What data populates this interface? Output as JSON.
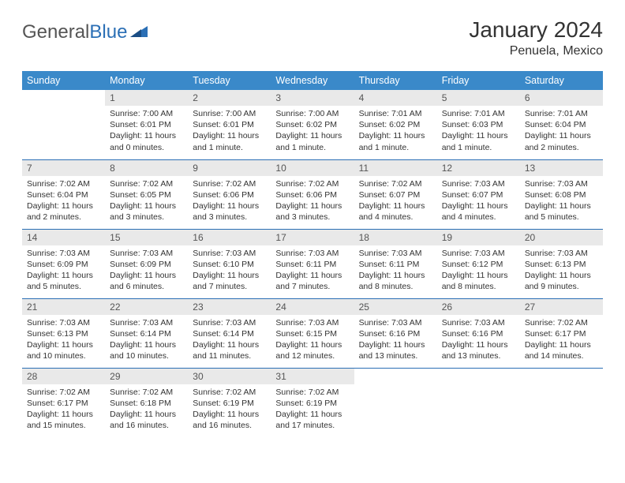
{
  "brand": {
    "part1": "General",
    "part2": "Blue"
  },
  "title": "January 2024",
  "location": "Penuela, Mexico",
  "colors": {
    "header_bg": "#3a89c9",
    "header_text": "#ffffff",
    "rule": "#2b6fb5",
    "daynum_bg": "#e9e9e9",
    "text": "#333333",
    "logo_gray": "#555555",
    "logo_blue": "#2b6fb5",
    "page_bg": "#ffffff"
  },
  "daynames": [
    "Sunday",
    "Monday",
    "Tuesday",
    "Wednesday",
    "Thursday",
    "Friday",
    "Saturday"
  ],
  "weeks": [
    [
      {
        "n": "",
        "sunrise": "",
        "sunset": "",
        "daylight": "",
        "empty": true
      },
      {
        "n": "1",
        "sunrise": "Sunrise: 7:00 AM",
        "sunset": "Sunset: 6:01 PM",
        "daylight": "Daylight: 11 hours and 0 minutes."
      },
      {
        "n": "2",
        "sunrise": "Sunrise: 7:00 AM",
        "sunset": "Sunset: 6:01 PM",
        "daylight": "Daylight: 11 hours and 1 minute."
      },
      {
        "n": "3",
        "sunrise": "Sunrise: 7:00 AM",
        "sunset": "Sunset: 6:02 PM",
        "daylight": "Daylight: 11 hours and 1 minute."
      },
      {
        "n": "4",
        "sunrise": "Sunrise: 7:01 AM",
        "sunset": "Sunset: 6:02 PM",
        "daylight": "Daylight: 11 hours and 1 minute."
      },
      {
        "n": "5",
        "sunrise": "Sunrise: 7:01 AM",
        "sunset": "Sunset: 6:03 PM",
        "daylight": "Daylight: 11 hours and 1 minute."
      },
      {
        "n": "6",
        "sunrise": "Sunrise: 7:01 AM",
        "sunset": "Sunset: 6:04 PM",
        "daylight": "Daylight: 11 hours and 2 minutes."
      }
    ],
    [
      {
        "n": "7",
        "sunrise": "Sunrise: 7:02 AM",
        "sunset": "Sunset: 6:04 PM",
        "daylight": "Daylight: 11 hours and 2 minutes."
      },
      {
        "n": "8",
        "sunrise": "Sunrise: 7:02 AM",
        "sunset": "Sunset: 6:05 PM",
        "daylight": "Daylight: 11 hours and 3 minutes."
      },
      {
        "n": "9",
        "sunrise": "Sunrise: 7:02 AM",
        "sunset": "Sunset: 6:06 PM",
        "daylight": "Daylight: 11 hours and 3 minutes."
      },
      {
        "n": "10",
        "sunrise": "Sunrise: 7:02 AM",
        "sunset": "Sunset: 6:06 PM",
        "daylight": "Daylight: 11 hours and 3 minutes."
      },
      {
        "n": "11",
        "sunrise": "Sunrise: 7:02 AM",
        "sunset": "Sunset: 6:07 PM",
        "daylight": "Daylight: 11 hours and 4 minutes."
      },
      {
        "n": "12",
        "sunrise": "Sunrise: 7:03 AM",
        "sunset": "Sunset: 6:07 PM",
        "daylight": "Daylight: 11 hours and 4 minutes."
      },
      {
        "n": "13",
        "sunrise": "Sunrise: 7:03 AM",
        "sunset": "Sunset: 6:08 PM",
        "daylight": "Daylight: 11 hours and 5 minutes."
      }
    ],
    [
      {
        "n": "14",
        "sunrise": "Sunrise: 7:03 AM",
        "sunset": "Sunset: 6:09 PM",
        "daylight": "Daylight: 11 hours and 5 minutes."
      },
      {
        "n": "15",
        "sunrise": "Sunrise: 7:03 AM",
        "sunset": "Sunset: 6:09 PM",
        "daylight": "Daylight: 11 hours and 6 minutes."
      },
      {
        "n": "16",
        "sunrise": "Sunrise: 7:03 AM",
        "sunset": "Sunset: 6:10 PM",
        "daylight": "Daylight: 11 hours and 7 minutes."
      },
      {
        "n": "17",
        "sunrise": "Sunrise: 7:03 AM",
        "sunset": "Sunset: 6:11 PM",
        "daylight": "Daylight: 11 hours and 7 minutes."
      },
      {
        "n": "18",
        "sunrise": "Sunrise: 7:03 AM",
        "sunset": "Sunset: 6:11 PM",
        "daylight": "Daylight: 11 hours and 8 minutes."
      },
      {
        "n": "19",
        "sunrise": "Sunrise: 7:03 AM",
        "sunset": "Sunset: 6:12 PM",
        "daylight": "Daylight: 11 hours and 8 minutes."
      },
      {
        "n": "20",
        "sunrise": "Sunrise: 7:03 AM",
        "sunset": "Sunset: 6:13 PM",
        "daylight": "Daylight: 11 hours and 9 minutes."
      }
    ],
    [
      {
        "n": "21",
        "sunrise": "Sunrise: 7:03 AM",
        "sunset": "Sunset: 6:13 PM",
        "daylight": "Daylight: 11 hours and 10 minutes."
      },
      {
        "n": "22",
        "sunrise": "Sunrise: 7:03 AM",
        "sunset": "Sunset: 6:14 PM",
        "daylight": "Daylight: 11 hours and 10 minutes."
      },
      {
        "n": "23",
        "sunrise": "Sunrise: 7:03 AM",
        "sunset": "Sunset: 6:14 PM",
        "daylight": "Daylight: 11 hours and 11 minutes."
      },
      {
        "n": "24",
        "sunrise": "Sunrise: 7:03 AM",
        "sunset": "Sunset: 6:15 PM",
        "daylight": "Daylight: 11 hours and 12 minutes."
      },
      {
        "n": "25",
        "sunrise": "Sunrise: 7:03 AM",
        "sunset": "Sunset: 6:16 PM",
        "daylight": "Daylight: 11 hours and 13 minutes."
      },
      {
        "n": "26",
        "sunrise": "Sunrise: 7:03 AM",
        "sunset": "Sunset: 6:16 PM",
        "daylight": "Daylight: 11 hours and 13 minutes."
      },
      {
        "n": "27",
        "sunrise": "Sunrise: 7:02 AM",
        "sunset": "Sunset: 6:17 PM",
        "daylight": "Daylight: 11 hours and 14 minutes."
      }
    ],
    [
      {
        "n": "28",
        "sunrise": "Sunrise: 7:02 AM",
        "sunset": "Sunset: 6:17 PM",
        "daylight": "Daylight: 11 hours and 15 minutes."
      },
      {
        "n": "29",
        "sunrise": "Sunrise: 7:02 AM",
        "sunset": "Sunset: 6:18 PM",
        "daylight": "Daylight: 11 hours and 16 minutes."
      },
      {
        "n": "30",
        "sunrise": "Sunrise: 7:02 AM",
        "sunset": "Sunset: 6:19 PM",
        "daylight": "Daylight: 11 hours and 16 minutes."
      },
      {
        "n": "31",
        "sunrise": "Sunrise: 7:02 AM",
        "sunset": "Sunset: 6:19 PM",
        "daylight": "Daylight: 11 hours and 17 minutes."
      },
      {
        "n": "",
        "sunrise": "",
        "sunset": "",
        "daylight": "",
        "empty": true
      },
      {
        "n": "",
        "sunrise": "",
        "sunset": "",
        "daylight": "",
        "empty": true
      },
      {
        "n": "",
        "sunrise": "",
        "sunset": "",
        "daylight": "",
        "empty": true
      }
    ]
  ]
}
